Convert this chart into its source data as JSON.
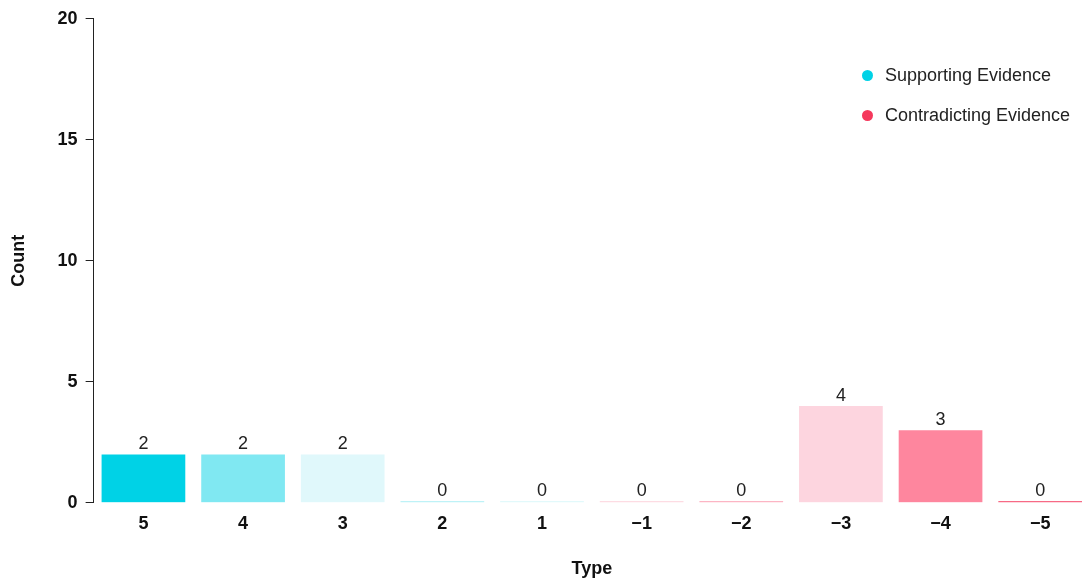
{
  "chart_data": {
    "type": "bar",
    "xlabel": "Type",
    "ylabel": "Count",
    "categories": [
      "5",
      "4",
      "3",
      "2",
      "1",
      "−1",
      "−2",
      "−3",
      "−4",
      "−5"
    ],
    "series": [
      {
        "name": "Supporting Evidence",
        "color": "#00d2e6",
        "colors": [
          "#00d2e6",
          "#80e8f2",
          "#e0f8fb",
          "#a8eef5",
          "#d8f7fa",
          null,
          null,
          null,
          null,
          null
        ],
        "values": [
          2,
          2,
          2,
          0,
          0,
          null,
          null,
          null,
          null,
          null
        ]
      },
      {
        "name": "Contradicting Evidence",
        "color": "#f5385c",
        "colors": [
          null,
          null,
          null,
          null,
          null,
          "#fdd0da",
          "#fb9db0",
          "#fdd5df",
          "#fe869e",
          "#f5385c"
        ],
        "values": [
          null,
          null,
          null,
          null,
          null,
          0,
          0,
          4,
          3,
          0
        ]
      }
    ],
    "ylim": [
      0,
      20
    ],
    "yticks": [
      0,
      5,
      10,
      15,
      20
    ],
    "grid": false,
    "legend": "top right",
    "data_labels": true
  }
}
